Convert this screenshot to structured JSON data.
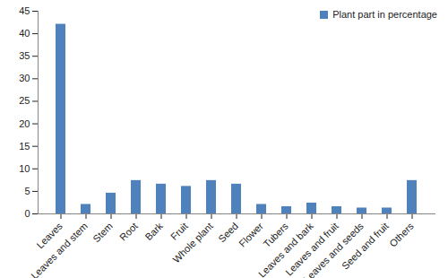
{
  "chart_data": {
    "type": "bar",
    "categories": [
      "Leaves",
      "Leaves and stem",
      "Stem",
      "Root",
      "Bark",
      "Fruit",
      "Whole plant",
      "Seed",
      "Flower",
      "Tubers",
      "Leaves and bark",
      "Leaves and fruit",
      "Leaves and seeds",
      "Seed and fruit",
      "Others"
    ],
    "series": [
      {
        "name": "Plant part in percentage",
        "color": "#4f81bd",
        "values": [
          42.1,
          2.1,
          4.6,
          7.4,
          6.6,
          6.1,
          7.4,
          6.6,
          2.1,
          1.6,
          2.4,
          1.6,
          1.3,
          1.3,
          7.4
        ]
      }
    ],
    "ylim": [
      0,
      45
    ],
    "yticks": [
      0,
      5,
      10,
      15,
      20,
      25,
      30,
      35,
      40,
      45
    ],
    "grid": false,
    "legend": "top-right"
  }
}
